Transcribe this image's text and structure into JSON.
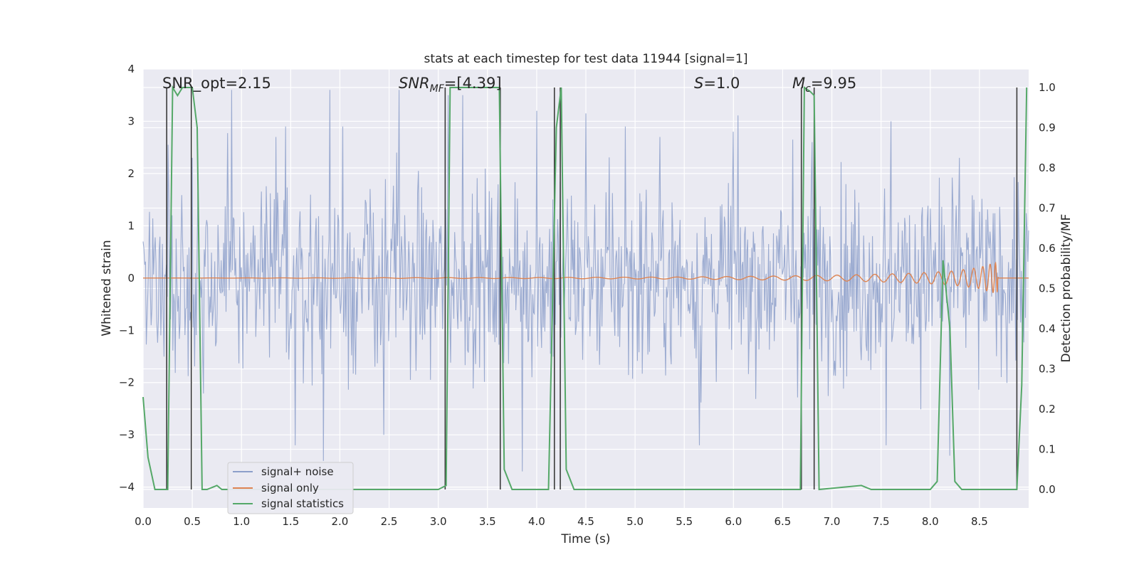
{
  "chart_data": {
    "type": "line",
    "title": "stats at each timestep for test data 11944 [signal=1]",
    "xlabel": "Time (s)",
    "ylabel": "Whitened strain",
    "y2label": "Detection probability/MF",
    "xlim": [
      0.0,
      9.0
    ],
    "ylim": [
      -4.4,
      4.0
    ],
    "y2lim": [
      -0.046,
      1.046
    ],
    "x_ticks": [
      "0.0",
      "0.5",
      "1.0",
      "1.5",
      "2.0",
      "2.5",
      "3.0",
      "3.5",
      "4.0",
      "4.5",
      "5.0",
      "5.5",
      "6.0",
      "6.5",
      "7.0",
      "7.5",
      "8.0",
      "8.5"
    ],
    "y_ticks": [
      "4",
      "3",
      "2",
      "1",
      "0",
      "−1",
      "−2",
      "−3",
      "−4"
    ],
    "y2_ticks": [
      "1.0",
      "0.9",
      "0.8",
      "0.7",
      "0.6",
      "0.5",
      "0.4",
      "0.3",
      "0.2",
      "0.1",
      "0.0"
    ],
    "grid": true,
    "legend_position": "lower-left",
    "annotations": {
      "snr_opt": "SNR_opt=2.15",
      "snr_mf_main": "SNR",
      "snr_mf_sub": "MF",
      "snr_mf_val": "=[4.39]",
      "s_main": "S",
      "s_val": "=1.0",
      "mc_main": "M",
      "mc_sub": "c",
      "mc_val": "=9.95"
    },
    "series": [
      {
        "name": "signal+ noise",
        "color": "#8c9fca",
        "axis": "left",
        "envelope_note": "dense noise trace, amplitude approx ±2, peaks to ±3.6",
        "peak_samples": [
          [
            0.25,
            2.55
          ],
          [
            0.5,
            2.3
          ],
          [
            0.9,
            3.6
          ],
          [
            1.35,
            2.7
          ],
          [
            1.45,
            2.9
          ],
          [
            1.9,
            3.6
          ],
          [
            2.03,
            2.9
          ],
          [
            2.58,
            2.4
          ],
          [
            2.6,
            3.6
          ],
          [
            3.1,
            3.5
          ],
          [
            3.25,
            3.5
          ],
          [
            4.0,
            3.2
          ],
          [
            4.5,
            3.15
          ],
          [
            4.9,
            2.9
          ],
          [
            5.25,
            2.7
          ],
          [
            6.0,
            2.8
          ],
          [
            6.6,
            2.65
          ],
          [
            6.8,
            2.6
          ],
          [
            7.6,
            3.0
          ],
          [
            8.3,
            2.3
          ],
          [
            1.83,
            -3.5
          ],
          [
            1.55,
            -3.2
          ],
          [
            2.45,
            -3.0
          ],
          [
            3.85,
            -3.7
          ],
          [
            5.65,
            -3.2
          ],
          [
            7.55,
            -3.2
          ],
          [
            8.2,
            -3.4
          ]
        ]
      },
      {
        "name": "signal only",
        "color": "#dd8452",
        "axis": "left",
        "envelope": {
          "x": [
            0.0,
            4.0,
            5.5,
            6.5,
            7.2,
            7.8,
            8.2,
            8.5,
            8.6,
            8.68,
            8.69
          ],
          "amp": [
            0.0,
            0.01,
            0.02,
            0.04,
            0.06,
            0.09,
            0.13,
            0.2,
            0.26,
            0.3,
            0.0
          ]
        }
      },
      {
        "name": "signal statistics",
        "color": "#55a868",
        "axis": "right",
        "x": [
          0.0,
          0.05,
          0.12,
          0.25,
          0.3,
          0.35,
          0.4,
          0.5,
          0.55,
          0.6,
          0.65,
          0.75,
          0.8,
          3.0,
          3.08,
          3.12,
          3.4,
          3.62,
          3.67,
          3.75,
          4.12,
          4.2,
          4.25,
          4.3,
          4.38,
          6.68,
          6.72,
          6.78,
          6.82,
          6.87,
          7.3,
          7.4,
          8.0,
          8.07,
          8.13,
          8.2,
          8.25,
          8.32,
          8.88,
          8.93,
          8.98
        ],
        "values": [
          0.23,
          0.08,
          0.0,
          0.0,
          1.0,
          0.98,
          1.0,
          1.0,
          0.9,
          0.0,
          0.0,
          0.01,
          0.0,
          0.0,
          0.01,
          1.0,
          1.0,
          1.0,
          0.05,
          0.0,
          0.0,
          0.9,
          1.0,
          0.05,
          0.0,
          0.0,
          1.0,
          0.99,
          0.98,
          0.0,
          0.01,
          0.0,
          0.0,
          0.02,
          0.57,
          0.4,
          0.02,
          0.0,
          0.0,
          0.26,
          1.0
        ]
      }
    ],
    "vlines": {
      "color": "#3a3a3a",
      "x": [
        0.24,
        0.49,
        3.07,
        3.63,
        4.18,
        4.24,
        6.69,
        6.82,
        8.88
      ]
    }
  }
}
